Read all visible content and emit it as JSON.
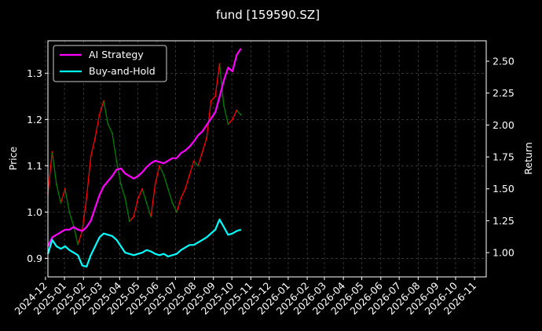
{
  "chart_data": {
    "type": "line",
    "title": "fund [159590.SZ]",
    "ylabel_left": "Price",
    "ylabel_right": "Return",
    "grid": true,
    "legend": {
      "placement": "top-left",
      "entries": [
        "AI Strategy",
        "Buy-and-Hold"
      ]
    },
    "colors": {
      "background": "#000000",
      "ai_strategy": "#ff00ff",
      "buy_and_hold": "#00ffff",
      "price_up": "#ff0000",
      "price_down": "#008000",
      "grid": "#555555",
      "text": "#ffffff"
    },
    "x_range": [
      "2024-12-05",
      "2026-11-20"
    ],
    "y_left_range": [
      0.86,
      1.37
    ],
    "y_right_range": [
      0.81,
      2.66
    ],
    "x_ticks": [
      "2024-12",
      "2025-01",
      "2025-02",
      "2025-03",
      "2025-04",
      "2025-05",
      "2025-06",
      "2025-07",
      "2025-08",
      "2025-09",
      "2025-10",
      "2025-11",
      "2025-12",
      "2026-01",
      "2026-02",
      "2026-03",
      "2026-04",
      "2026-05",
      "2026-06",
      "2026-07",
      "2026-08",
      "2026-09",
      "2026-10",
      "2026-11"
    ],
    "y_left_ticks": [
      0.9,
      1.0,
      1.1,
      1.2,
      1.3
    ],
    "y_right_ticks": [
      "1.00",
      "1.25",
      "1.50",
      "1.75",
      "2.00",
      "2.25",
      "2.50"
    ],
    "price_series": {
      "name": "Price",
      "x": [
        "2024-12-05",
        "2024-12-12",
        "2024-12-19",
        "2024-12-26",
        "2025-01-02",
        "2025-01-09",
        "2025-01-16",
        "2025-01-23",
        "2025-01-30",
        "2025-02-06",
        "2025-02-13",
        "2025-02-20",
        "2025-02-27",
        "2025-03-06",
        "2025-03-13",
        "2025-03-20",
        "2025-03-27",
        "2025-04-03",
        "2025-04-10",
        "2025-04-17",
        "2025-04-24",
        "2025-05-01",
        "2025-05-08",
        "2025-05-15",
        "2025-05-22",
        "2025-05-29",
        "2025-06-05",
        "2025-06-12",
        "2025-06-19",
        "2025-06-26",
        "2025-07-03",
        "2025-07-10",
        "2025-07-17",
        "2025-07-24",
        "2025-07-31",
        "2025-08-07",
        "2025-08-14",
        "2025-08-21",
        "2025-08-28",
        "2025-09-04",
        "2025-09-11",
        "2025-09-18",
        "2025-09-25",
        "2025-10-02",
        "2025-10-09",
        "2025-10-16"
      ],
      "values": [
        1.04,
        1.13,
        1.06,
        1.02,
        1.05,
        1.0,
        0.97,
        0.93,
        0.96,
        1.03,
        1.12,
        1.16,
        1.21,
        1.24,
        1.19,
        1.17,
        1.11,
        1.06,
        1.03,
        0.98,
        0.99,
        1.03,
        1.05,
        1.02,
        0.99,
        1.06,
        1.1,
        1.08,
        1.05,
        1.02,
        1.0,
        1.03,
        1.05,
        1.08,
        1.11,
        1.1,
        1.13,
        1.16,
        1.24,
        1.25,
        1.32,
        1.23,
        1.19,
        1.2,
        1.22,
        1.21
      ]
    },
    "series": [
      {
        "name": "AI Strategy",
        "x": [
          "2024-12-05",
          "2024-12-12",
          "2024-12-19",
          "2024-12-26",
          "2025-01-02",
          "2025-01-09",
          "2025-01-16",
          "2025-01-23",
          "2025-01-30",
          "2025-02-06",
          "2025-02-13",
          "2025-02-20",
          "2025-02-27",
          "2025-03-06",
          "2025-03-13",
          "2025-03-20",
          "2025-03-27",
          "2025-04-03",
          "2025-04-10",
          "2025-04-17",
          "2025-04-24",
          "2025-05-01",
          "2025-05-08",
          "2025-05-15",
          "2025-05-22",
          "2025-05-29",
          "2025-06-05",
          "2025-06-12",
          "2025-06-19",
          "2025-06-26",
          "2025-07-03",
          "2025-07-10",
          "2025-07-17",
          "2025-07-24",
          "2025-07-31",
          "2025-08-07",
          "2025-08-14",
          "2025-08-21",
          "2025-08-28",
          "2025-09-04",
          "2025-09-11",
          "2025-09-18",
          "2025-09-25",
          "2025-10-02",
          "2025-10-09",
          "2025-10-16"
        ],
        "values": [
          1.05,
          1.12,
          1.14,
          1.16,
          1.18,
          1.18,
          1.2,
          1.18,
          1.17,
          1.2,
          1.25,
          1.35,
          1.45,
          1.52,
          1.56,
          1.6,
          1.65,
          1.66,
          1.62,
          1.6,
          1.58,
          1.6,
          1.63,
          1.67,
          1.7,
          1.72,
          1.71,
          1.7,
          1.72,
          1.74,
          1.74,
          1.78,
          1.8,
          1.83,
          1.87,
          1.92,
          1.95,
          2.0,
          2.05,
          2.1,
          2.22,
          2.35,
          2.45,
          2.42,
          2.55,
          2.6
        ]
      },
      {
        "name": "Buy-and-Hold",
        "x": [
          "2024-12-05",
          "2024-12-12",
          "2024-12-19",
          "2024-12-26",
          "2025-01-02",
          "2025-01-09",
          "2025-01-16",
          "2025-01-23",
          "2025-01-30",
          "2025-02-06",
          "2025-02-13",
          "2025-02-20",
          "2025-02-27",
          "2025-03-06",
          "2025-03-13",
          "2025-03-20",
          "2025-03-27",
          "2025-04-03",
          "2025-04-10",
          "2025-04-17",
          "2025-04-24",
          "2025-05-01",
          "2025-05-08",
          "2025-05-15",
          "2025-05-22",
          "2025-05-29",
          "2025-06-05",
          "2025-06-12",
          "2025-06-19",
          "2025-06-26",
          "2025-07-03",
          "2025-07-10",
          "2025-07-17",
          "2025-07-24",
          "2025-07-31",
          "2025-08-07",
          "2025-08-14",
          "2025-08-21",
          "2025-08-28",
          "2025-09-04",
          "2025-09-11",
          "2025-09-18",
          "2025-09-25",
          "2025-10-02",
          "2025-10-09",
          "2025-10-16"
        ],
        "values": [
          0.99,
          1.1,
          1.05,
          1.03,
          1.05,
          1.02,
          1.0,
          0.98,
          0.9,
          0.89,
          0.98,
          1.05,
          1.12,
          1.15,
          1.14,
          1.13,
          1.1,
          1.05,
          1.0,
          0.99,
          0.98,
          0.99,
          1.0,
          1.02,
          1.01,
          0.99,
          0.98,
          0.99,
          0.97,
          0.98,
          0.99,
          1.02,
          1.04,
          1.06,
          1.06,
          1.08,
          1.1,
          1.12,
          1.15,
          1.18,
          1.26,
          1.2,
          1.14,
          1.15,
          1.17,
          1.18
        ]
      }
    ]
  }
}
